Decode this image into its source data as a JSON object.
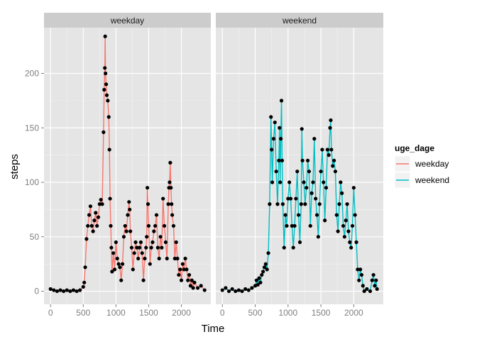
{
  "chart_data": {
    "type": "line",
    "facet_strips": [
      "weekday",
      "weekend"
    ],
    "xlabel": "Time",
    "ylabel": "steps",
    "xlim": [
      -100,
      2450
    ],
    "ylim": [
      -12,
      242
    ],
    "x_ticks": [
      0,
      500,
      1000,
      1500,
      2000
    ],
    "y_ticks": [
      0,
      50,
      100,
      150,
      200
    ],
    "grid": true,
    "legend": {
      "title": "uge_dage",
      "position": "right",
      "entries": [
        {
          "label": "weekday",
          "color": "#F8766D"
        },
        {
          "label": "weekend",
          "color": "#00BFC4"
        }
      ]
    },
    "series": [
      {
        "name": "weekday",
        "color": "#F8766D",
        "points": [
          [
            0,
            2
          ],
          [
            50,
            1
          ],
          [
            100,
            0
          ],
          [
            150,
            1
          ],
          [
            200,
            0
          ],
          [
            250,
            1
          ],
          [
            300,
            0
          ],
          [
            350,
            1
          ],
          [
            400,
            0
          ],
          [
            450,
            1
          ],
          [
            500,
            4
          ],
          [
            515,
            8
          ],
          [
            530,
            22
          ],
          [
            550,
            48
          ],
          [
            570,
            60
          ],
          [
            590,
            70
          ],
          [
            610,
            78
          ],
          [
            630,
            60
          ],
          [
            650,
            55
          ],
          [
            670,
            65
          ],
          [
            690,
            72
          ],
          [
            710,
            60
          ],
          [
            730,
            68
          ],
          [
            750,
            80
          ],
          [
            770,
            84
          ],
          [
            790,
            80
          ],
          [
            810,
            146
          ],
          [
            820,
            185
          ],
          [
            830,
            205
          ],
          [
            835,
            234
          ],
          [
            840,
            200
          ],
          [
            850,
            190
          ],
          [
            860,
            180
          ],
          [
            875,
            175
          ],
          [
            890,
            160
          ],
          [
            900,
            130
          ],
          [
            910,
            85
          ],
          [
            920,
            60
          ],
          [
            930,
            40
          ],
          [
            940,
            18
          ],
          [
            960,
            35
          ],
          [
            980,
            20
          ],
          [
            1000,
            45
          ],
          [
            1020,
            30
          ],
          [
            1040,
            25
          ],
          [
            1060,
            22
          ],
          [
            1080,
            10
          ],
          [
            1100,
            25
          ],
          [
            1120,
            50
          ],
          [
            1140,
            60
          ],
          [
            1160,
            55
          ],
          [
            1180,
            70
          ],
          [
            1200,
            82
          ],
          [
            1210,
            75
          ],
          [
            1220,
            55
          ],
          [
            1240,
            40
          ],
          [
            1260,
            20
          ],
          [
            1280,
            35
          ],
          [
            1300,
            45
          ],
          [
            1320,
            40
          ],
          [
            1340,
            30
          ],
          [
            1360,
            40
          ],
          [
            1380,
            45
          ],
          [
            1400,
            35
          ],
          [
            1420,
            10
          ],
          [
            1440,
            30
          ],
          [
            1460,
            40
          ],
          [
            1470,
            50
          ],
          [
            1480,
            95
          ],
          [
            1490,
            80
          ],
          [
            1500,
            60
          ],
          [
            1520,
            25
          ],
          [
            1540,
            40
          ],
          [
            1560,
            45
          ],
          [
            1580,
            55
          ],
          [
            1600,
            60
          ],
          [
            1620,
            70
          ],
          [
            1640,
            40
          ],
          [
            1660,
            30
          ],
          [
            1680,
            50
          ],
          [
            1700,
            40
          ],
          [
            1720,
            85
          ],
          [
            1740,
            60
          ],
          [
            1760,
            45
          ],
          [
            1780,
            30
          ],
          [
            1800,
            80
          ],
          [
            1810,
            95
          ],
          [
            1820,
            100
          ],
          [
            1830,
            118
          ],
          [
            1840,
            95
          ],
          [
            1850,
            80
          ],
          [
            1860,
            70
          ],
          [
            1880,
            60
          ],
          [
            1900,
            30
          ],
          [
            1920,
            45
          ],
          [
            1940,
            30
          ],
          [
            1960,
            15
          ],
          [
            1980,
            20
          ],
          [
            2000,
            10
          ],
          [
            2020,
            25
          ],
          [
            2040,
            20
          ],
          [
            2060,
            30
          ],
          [
            2080,
            20
          ],
          [
            2100,
            10
          ],
          [
            2120,
            15
          ],
          [
            2140,
            5
          ],
          [
            2160,
            10
          ],
          [
            2180,
            3
          ],
          [
            2200,
            8
          ],
          [
            2250,
            3
          ],
          [
            2300,
            5
          ],
          [
            2355,
            1
          ]
        ]
      },
      {
        "name": "weekend",
        "color": "#00BFC4",
        "points": [
          [
            0,
            1
          ],
          [
            50,
            3
          ],
          [
            100,
            0
          ],
          [
            150,
            2
          ],
          [
            200,
            0
          ],
          [
            250,
            1
          ],
          [
            300,
            0
          ],
          [
            350,
            2
          ],
          [
            400,
            1
          ],
          [
            450,
            3
          ],
          [
            500,
            5
          ],
          [
            520,
            10
          ],
          [
            540,
            6
          ],
          [
            560,
            12
          ],
          [
            580,
            8
          ],
          [
            600,
            15
          ],
          [
            620,
            18
          ],
          [
            640,
            22
          ],
          [
            660,
            25
          ],
          [
            680,
            20
          ],
          [
            700,
            35
          ],
          [
            720,
            80
          ],
          [
            740,
            160
          ],
          [
            750,
            130
          ],
          [
            760,
            100
          ],
          [
            780,
            140
          ],
          [
            800,
            155
          ],
          [
            820,
            110
          ],
          [
            840,
            80
          ],
          [
            860,
            120
          ],
          [
            870,
            150
          ],
          [
            880,
            100
          ],
          [
            890,
            140
          ],
          [
            900,
            175
          ],
          [
            910,
            120
          ],
          [
            920,
            80
          ],
          [
            940,
            40
          ],
          [
            960,
            70
          ],
          [
            980,
            60
          ],
          [
            1000,
            85
          ],
          [
            1020,
            100
          ],
          [
            1040,
            85
          ],
          [
            1060,
            60
          ],
          [
            1080,
            40
          ],
          [
            1100,
            60
          ],
          [
            1120,
            85
          ],
          [
            1140,
            110
          ],
          [
            1160,
            70
          ],
          [
            1180,
            45
          ],
          [
            1200,
            80
          ],
          [
            1210,
            149
          ],
          [
            1220,
            120
          ],
          [
            1240,
            100
          ],
          [
            1260,
            80
          ],
          [
            1280,
            95
          ],
          [
            1300,
            120
          ],
          [
            1320,
            110
          ],
          [
            1340,
            60
          ],
          [
            1360,
            90
          ],
          [
            1380,
            100
          ],
          [
            1400,
            140
          ],
          [
            1420,
            85
          ],
          [
            1440,
            70
          ],
          [
            1460,
            50
          ],
          [
            1480,
            80
          ],
          [
            1500,
            110
          ],
          [
            1520,
            130
          ],
          [
            1540,
            100
          ],
          [
            1560,
            65
          ],
          [
            1580,
            95
          ],
          [
            1600,
            130
          ],
          [
            1620,
            125
          ],
          [
            1640,
            150
          ],
          [
            1650,
            157
          ],
          [
            1660,
            130
          ],
          [
            1680,
            115
          ],
          [
            1700,
            120
          ],
          [
            1720,
            110
          ],
          [
            1740,
            70
          ],
          [
            1760,
            55
          ],
          [
            1780,
            80
          ],
          [
            1800,
            100
          ],
          [
            1820,
            90
          ],
          [
            1840,
            60
          ],
          [
            1860,
            50
          ],
          [
            1880,
            65
          ],
          [
            1900,
            80
          ],
          [
            1920,
            55
          ],
          [
            1940,
            45
          ],
          [
            1960,
            40
          ],
          [
            1980,
            60
          ],
          [
            2000,
            95
          ],
          [
            2020,
            70
          ],
          [
            2040,
            45
          ],
          [
            2060,
            20
          ],
          [
            2080,
            10
          ],
          [
            2100,
            20
          ],
          [
            2120,
            15
          ],
          [
            2140,
            5
          ],
          [
            2160,
            0
          ],
          [
            2200,
            2
          ],
          [
            2250,
            0
          ],
          [
            2280,
            10
          ],
          [
            2300,
            15
          ],
          [
            2320,
            5
          ],
          [
            2340,
            10
          ],
          [
            2355,
            2
          ]
        ]
      }
    ]
  }
}
